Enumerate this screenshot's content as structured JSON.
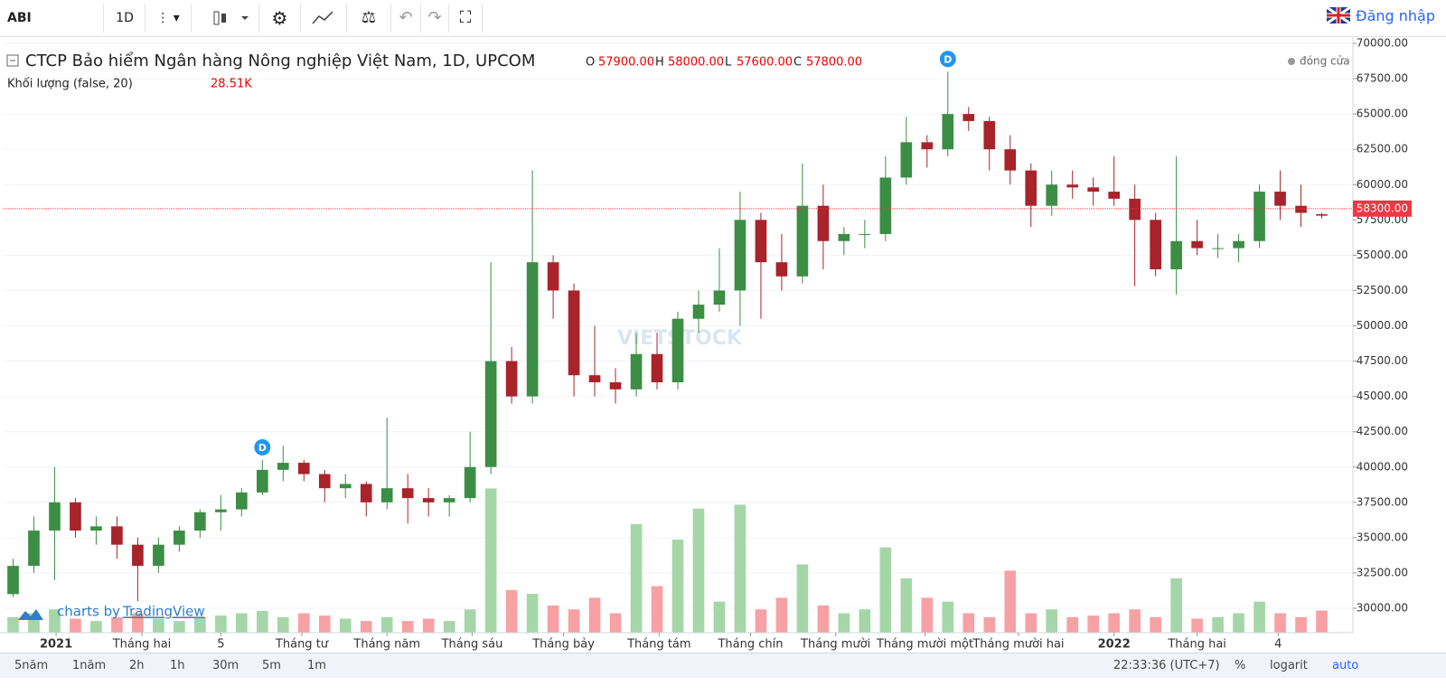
{
  "toolbar": {
    "symbol": "ABI",
    "interval": "1D",
    "login": "Đăng nhập"
  },
  "chart_data": {
    "type": "candlestick",
    "title": "CTCP Bảo hiểm Ngân hàng Nông nghiệp Việt Nam, 1D, UPCOM",
    "header": {
      "open_key": "O",
      "high_key": "H",
      "low_key": "L",
      "close_key": "C",
      "open": {
        "value": 57900,
        "label": "57900.00"
      },
      "high": {
        "value": 58000,
        "label": "58000.00"
      },
      "low": {
        "value": 57600,
        "label": "57600.00"
      },
      "close": {
        "value": 57800,
        "label": "57800.00"
      },
      "status": "đóng cửa"
    },
    "volume_title": "Khối lượng (false, 20)",
    "volume_last": {
      "value": 28510,
      "label": "28.51K"
    },
    "watermark": "VIETSTOCK",
    "credit": "charts by",
    "credit_link": "TradingView",
    "up_color": "#3b8e44",
    "down_color": "#a8232a",
    "volume_up_color": "#a5d6a7",
    "volume_down_color": "#f7a1a5",
    "price_line": {
      "value": 58300,
      "label": "58300.00",
      "color": "#f23645"
    },
    "events": [
      {
        "x": 12.5,
        "label": "D"
      },
      {
        "x": 45.5,
        "label": "D"
      }
    ],
    "x": [
      0.5,
      1.5,
      2.5,
      3.5,
      4.5,
      5.5,
      6.5,
      7.5,
      8.5,
      9.5,
      10.5,
      11.5,
      12.5,
      13.5,
      14.5,
      15.5,
      16.5,
      17.5,
      18.5,
      19.5,
      20.5,
      21.5,
      22.5,
      23.5,
      24.5,
      25.5,
      26.5,
      27.5,
      28.5,
      29.5,
      30.5,
      31.5,
      32.5,
      33.5,
      34.5,
      35.5,
      36.5,
      37.5,
      38.5,
      39.5,
      40.5,
      41.5,
      42.5,
      43.5,
      44.5,
      45.5,
      46.5,
      47.5,
      48.5,
      49.5,
      50.5,
      51.5,
      52.5,
      53.5,
      54.5,
      55.5,
      56.5,
      57.5,
      58.5,
      59.5,
      60.5,
      61.5,
      62.5,
      63.5
    ],
    "open": [
      31000,
      33000,
      35500,
      37500,
      35500,
      35800,
      34500,
      33000,
      34500,
      35500,
      36800,
      37000,
      38200,
      39800,
      40300,
      39500,
      38500,
      38800,
      37500,
      38500,
      37800,
      37500,
      37800,
      40000,
      47500,
      45000,
      54500,
      52500,
      46500,
      46000,
      45500,
      48000,
      46000,
      50500,
      51500,
      52500,
      57500,
      54500,
      53500,
      58500,
      56000,
      56500,
      56500,
      60500,
      63000,
      62500,
      65000,
      64500,
      62500,
      61000,
      58500,
      60000,
      59800,
      59500,
      59000,
      57500,
      54000,
      56000,
      55500,
      55500,
      56000,
      59500,
      58500,
      57900
    ],
    "high": [
      33500,
      36500,
      40000,
      37800,
      36500,
      36500,
      35000,
      35000,
      35800,
      37000,
      38000,
      38500,
      40500,
      41500,
      40500,
      39800,
      39500,
      39000,
      43500,
      39500,
      38500,
      38000,
      42500,
      54500,
      48500,
      61000,
      55000,
      53000,
      50000,
      47000,
      49500,
      49500,
      51000,
      52500,
      55500,
      59500,
      58000,
      56500,
      61500,
      60000,
      57000,
      57500,
      62000,
      64800,
      63500,
      68000,
      65500,
      64800,
      63500,
      61500,
      61000,
      61000,
      60500,
      62000,
      60000,
      58000,
      62000,
      57500,
      56500,
      56500,
      60000,
      61000,
      60000,
      58000
    ],
    "low": [
      30800,
      32500,
      32000,
      35000,
      34500,
      33500,
      30500,
      32500,
      34000,
      35000,
      35500,
      36500,
      38000,
      39000,
      39000,
      37500,
      37800,
      36500,
      37000,
      36000,
      36500,
      36500,
      37500,
      39500,
      44500,
      44500,
      50500,
      45000,
      45000,
      44500,
      45000,
      45500,
      45500,
      49500,
      51000,
      50000,
      50500,
      52500,
      53000,
      54000,
      55000,
      55500,
      56000,
      60000,
      61200,
      62000,
      63800,
      61000,
      60000,
      57000,
      57800,
      59000,
      58500,
      58500,
      52800,
      53500,
      52200,
      55000,
      54800,
      54500,
      55500,
      57500,
      57000,
      57600
    ],
    "close": [
      33000,
      35500,
      37500,
      35500,
      35800,
      34500,
      33000,
      34500,
      35500,
      36800,
      37000,
      38200,
      39800,
      40300,
      39500,
      38500,
      38800,
      37500,
      38500,
      37800,
      37500,
      37800,
      40000,
      47500,
      45000,
      54500,
      52500,
      46500,
      46000,
      45500,
      48000,
      46000,
      50500,
      51500,
      52500,
      57500,
      54500,
      53500,
      58500,
      56000,
      56500,
      56500,
      60500,
      63000,
      62500,
      65000,
      64500,
      62500,
      61000,
      58500,
      60000,
      59800,
      59500,
      59000,
      57500,
      54000,
      56000,
      55500,
      55500,
      56000,
      59500,
      58500,
      58000,
      57800
    ],
    "volume": [
      20000,
      25000,
      30000,
      18000,
      15000,
      20000,
      25000,
      18000,
      15000,
      20000,
      22000,
      25000,
      28000,
      20000,
      25000,
      22000,
      18000,
      15000,
      20000,
      15000,
      18000,
      15000,
      30000,
      186000,
      55000,
      50000,
      35000,
      30000,
      45000,
      25000,
      140000,
      60000,
      120000,
      160000,
      40000,
      165000,
      30000,
      45000,
      88000,
      35000,
      25000,
      30000,
      110000,
      70000,
      45000,
      40000,
      25000,
      20000,
      80000,
      25000,
      30000,
      20000,
      22000,
      25000,
      30000,
      20000,
      70000,
      18000,
      20000,
      25000,
      40000,
      25000,
      20000,
      28510
    ],
    "xlim": [
      0,
      65
    ],
    "ylim": [
      28272,
      70512
    ],
    "volume_lim": [
      0,
      190000
    ],
    "yticks": [
      {
        "value": 30000,
        "label": "30000.00"
      },
      {
        "value": 32500,
        "label": "32500.00"
      },
      {
        "value": 35000,
        "label": "35000.00"
      },
      {
        "value": 37500,
        "label": "37500.00"
      },
      {
        "value": 40000,
        "label": "40000.00"
      },
      {
        "value": 42500,
        "label": "42500.00"
      },
      {
        "value": 45000,
        "label": "45000.00"
      },
      {
        "value": 47500,
        "label": "47500.00"
      },
      {
        "value": 50000,
        "label": "50000.00"
      },
      {
        "value": 52500,
        "label": "52500.00"
      },
      {
        "value": 55000,
        "label": "55000.00"
      },
      {
        "value": 57500,
        "label": "57500.00"
      },
      {
        "value": 60000,
        "label": "60000.00"
      },
      {
        "value": 62500,
        "label": "62500.00"
      },
      {
        "value": 65000,
        "label": "65000.00"
      },
      {
        "value": 67500,
        "label": "67500.00"
      },
      {
        "value": 70000,
        "label": "70000.00"
      }
    ],
    "xticks": [
      {
        "value": 2.57,
        "label": "2021"
      },
      {
        "value": 6.7,
        "label": "Tháng hai"
      },
      {
        "value": 10.5,
        "label": "5"
      },
      {
        "value": 14.4,
        "label": "Tháng tư"
      },
      {
        "value": 18.5,
        "label": "Tháng năm"
      },
      {
        "value": 22.6,
        "label": "Tháng sáu"
      },
      {
        "value": 27.0,
        "label": "Tháng bảy"
      },
      {
        "value": 31.6,
        "label": "Tháng tám"
      },
      {
        "value": 36.0,
        "label": "Tháng chín"
      },
      {
        "value": 40.1,
        "label": "Tháng mười"
      },
      {
        "value": 44.4,
        "label": "Tháng mười một"
      },
      {
        "value": 48.9,
        "label": "Tháng mười hai"
      },
      {
        "value": 53.5,
        "label": "2022"
      },
      {
        "value": 57.5,
        "label": "Tháng hai"
      },
      {
        "value": 61.4,
        "label": "4"
      }
    ]
  },
  "footer": {
    "ranges": [
      "5năm",
      "1năm",
      "2h",
      "1h",
      "30m",
      "5m",
      "1m"
    ],
    "clock": "22:33:36 (UTC+7)",
    "percent": "%",
    "log": "logarit",
    "auto": "auto"
  }
}
